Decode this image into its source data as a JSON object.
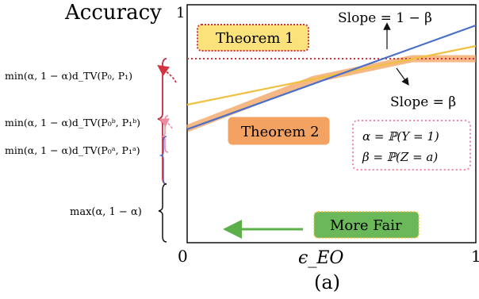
{
  "figure": {
    "y_title": "Accuracy",
    "y_top_tick": "1",
    "x_ticks": {
      "left": "0",
      "mid": "ϵ_EO",
      "right": "1"
    },
    "caption": "(a)"
  },
  "boxes": {
    "theorem1": "Theorem 1",
    "theorem2": "Theorem 2",
    "more_fair": "More Fair",
    "definitions": [
      "α = ℙ(Y = 1)",
      "β = ℙ(Z = a)"
    ]
  },
  "annotations": {
    "slope_top": "Slope = 1 − β",
    "slope_bottom": "Slope = β"
  },
  "left_bounds": [
    "min(α, 1 − α)d_TV(P₀, P₁)",
    "min(α, 1 − α)d_TV(P₀ᵇ, P₁ᵇ)",
    "min(α, 1 − α)d_TV(P₀ᵃ, P₁ᵃ)",
    "max(α, 1 − α)"
  ],
  "colors": {
    "blue_line": "#4a6fc8",
    "yellow_line": "#f0c040",
    "orange_band": "#f3a15e",
    "red_dotted": "#d2333f",
    "pink_dotted": "#f08aa0",
    "theorem1_fill": "#fbe27a",
    "theorem2_fill": "#f4a261",
    "fair_fill": "#6bb85a",
    "green_arrow": "#5cb04a"
  }
}
